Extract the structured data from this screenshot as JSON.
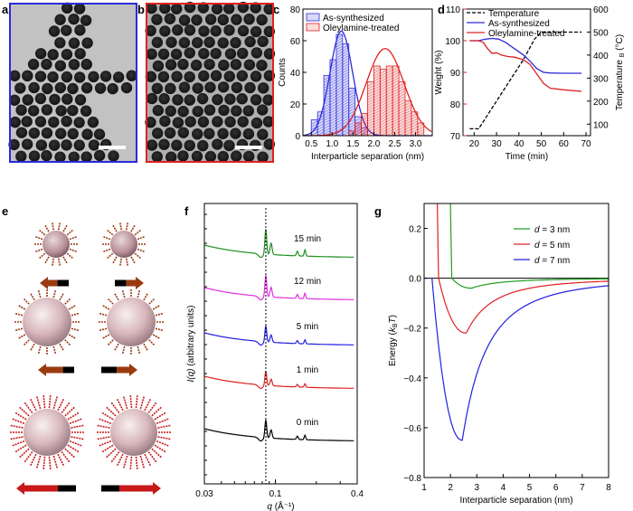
{
  "panel_labels": [
    "a",
    "b",
    "c",
    "d",
    "e",
    "f",
    "g"
  ],
  "colors": {
    "as_synthesized": "#2b2bd9",
    "oleylamine_treated": "#e02020",
    "temperature": "#000000",
    "weight_axis": "#e02020",
    "micrograph_a_frame": "#2b2bd9",
    "micrograph_b_frame": "#e02020",
    "arrow_black": "#000000",
    "arrow_brown": "#9b3a10",
    "arrow_red": "#c81818"
  },
  "panel_a": {
    "description_frame": "blue",
    "scale_bar": true
  },
  "panel_b": {
    "description_frame": "red",
    "scale_bar": true
  },
  "panel_e": {
    "rows": 3
  },
  "chart_data": [
    {
      "panel": "c",
      "type": "bar",
      "xlabel": "Interparticle separation (nm)",
      "ylabel": "Counts",
      "xlim": [
        0.3,
        3.4
      ],
      "ylim": [
        0,
        80
      ],
      "xticks": [
        0.5,
        1.0,
        1.5,
        2.0,
        2.5,
        3.0
      ],
      "xtick_labels": [
        "0.5",
        "1.0",
        "1.5",
        "2.0",
        "2.5",
        "3.0"
      ],
      "yticks": [
        0,
        20,
        40,
        60,
        80
      ],
      "legend": [
        "As-synthesized",
        "Oleylamine-treated"
      ],
      "legend_position": "top",
      "bin_width": 0.15,
      "series": [
        {
          "name": "As-synthesized",
          "bin_centers": [
            0.575,
            0.725,
            0.875,
            1.025,
            1.175,
            1.325,
            1.475,
            1.625,
            1.775
          ],
          "values": [
            10,
            15,
            38,
            48,
            64,
            58,
            30,
            12,
            5
          ],
          "fit_center": 1.22,
          "fit_sigma": 0.27,
          "fit_amp": 66
        },
        {
          "name": "Oleylamine-treated",
          "bin_centers": [
            1.475,
            1.625,
            1.775,
            1.925,
            2.075,
            2.225,
            2.375,
            2.525,
            2.675,
            2.825,
            2.975,
            3.125
          ],
          "values": [
            3,
            8,
            14,
            34,
            44,
            42,
            44,
            44,
            34,
            22,
            15,
            8
          ],
          "fit_center": 2.27,
          "fit_sigma": 0.45,
          "fit_amp": 55
        }
      ]
    },
    {
      "panel": "d",
      "type": "line",
      "xlabel": "Time (min)",
      "ylabel_left": "Weight (%)",
      "ylabel_right_prefix": "Temperature",
      "ylabel_right_sub": "B",
      "ylabel_right_suffix": "(°C)",
      "xlim": [
        15,
        72
      ],
      "ylim_left": [
        70,
        110
      ],
      "ylim_right": [
        50,
        600
      ],
      "xticks": [
        20,
        30,
        40,
        50,
        60,
        70
      ],
      "yticks_left": [
        70,
        80,
        90,
        100,
        110
      ],
      "yticks_right": [
        100,
        200,
        300,
        400,
        500,
        600
      ],
      "legend": [
        "Temperature",
        "As-synthesized",
        "Oleylamine-treated"
      ],
      "legend_position": "top-right",
      "series": [
        {
          "name": "Temperature",
          "axis": "right",
          "style": "dashed",
          "x": [
            18,
            22,
            24,
            30,
            36,
            42,
            47,
            50,
            55,
            60,
            68
          ],
          "y": [
            80,
            80,
            110,
            200,
            290,
            380,
            470,
            500,
            500,
            500,
            500
          ]
        },
        {
          "name": "As-synthesized",
          "axis": "left",
          "style": "solid",
          "x": [
            18,
            22,
            25,
            28,
            31,
            34,
            38,
            42,
            45,
            48,
            51,
            54,
            60,
            68
          ],
          "y": [
            100,
            100,
            100.5,
            100.7,
            100.5,
            99.5,
            97.5,
            95.5,
            93.5,
            91.2,
            90.0,
            89.8,
            89.7,
            89.7
          ]
        },
        {
          "name": "Oleylamine-treated",
          "axis": "left",
          "style": "solid",
          "x": [
            18,
            22,
            24,
            26,
            28,
            30,
            32,
            35,
            38,
            42,
            45,
            48,
            51,
            54,
            60,
            68
          ],
          "y": [
            100,
            100,
            99.5,
            97.5,
            96.0,
            96.2,
            95.5,
            95.0,
            94.8,
            94.0,
            92.5,
            89.5,
            86.5,
            85.0,
            84.5,
            84.0
          ]
        }
      ]
    },
    {
      "panel": "f",
      "type": "line",
      "xlabel_var": "q",
      "xlabel_unit": "(Å⁻¹)",
      "ylabel_var": "I(q)",
      "ylabel_unit": "(arbitrary units)",
      "xscale": "log",
      "xlim": [
        0.03,
        0.4
      ],
      "xticks": [
        0.03,
        0.1,
        0.4
      ],
      "xtick_labels": [
        "0.03",
        "0.1",
        "0.4"
      ],
      "dashed_line_x": 0.085,
      "series": [
        {
          "name": "0 min",
          "label": "0 min",
          "color": "#000000",
          "offset": 0
        },
        {
          "name": "1 min",
          "label": "1 min",
          "color": "#e02020",
          "offset": 1
        },
        {
          "name": "5 min",
          "label": "5 min",
          "color": "#2020e0",
          "offset": 2
        },
        {
          "name": "12 min",
          "label": "12 min",
          "color": "#e030e0",
          "offset": 3
        },
        {
          "name": "15 min",
          "label": "15 min",
          "color": "#209020",
          "offset": 4
        }
      ]
    },
    {
      "panel": "g",
      "type": "line",
      "xlabel": "Interparticle separation (nm)",
      "ylabel_prefix": "Energy (",
      "ylabel_var": "k",
      "ylabel_sub": "B",
      "ylabel_var2": "T",
      "ylabel_suffix": ")",
      "xlim": [
        1,
        8
      ],
      "ylim": [
        -0.8,
        0.3
      ],
      "xticks": [
        1,
        2,
        3,
        4,
        5,
        6,
        7,
        8
      ],
      "yticks": [
        -0.8,
        -0.6,
        -0.4,
        -0.2,
        0.0,
        0.2
      ],
      "ytick_labels": [
        "−0.8",
        "−0.6",
        "−0.4",
        "−0.2",
        "0.0",
        "0.2"
      ],
      "legend_position": "top-right",
      "series": [
        {
          "name": "d = 3 nm",
          "var": "d",
          "value_text": " = 3 nm",
          "color": "#20a020",
          "r0": 2.05,
          "depth": 0.04,
          "rmin": 2.8,
          "wall": 1.9
        },
        {
          "name": "d = 5 nm",
          "var": "d",
          "value_text": " = 5 nm",
          "color": "#e02020",
          "r0": 1.55,
          "depth": 0.22,
          "rmin": 2.6,
          "wall": 1.5
        },
        {
          "name": "d = 7 nm",
          "var": "d",
          "value_text": " = 7 nm",
          "color": "#2020e0",
          "r0": 1.3,
          "depth": 0.65,
          "rmin": 2.45,
          "wall": 1.3
        }
      ]
    }
  ]
}
